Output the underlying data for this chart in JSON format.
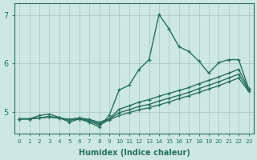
{
  "xlabel": "Humidex (Indice chaleur)",
  "ylabel": "",
  "background_color": "#cce8e0",
  "grid_color": "#b0d0c8",
  "line_color": "#2a7060",
  "xlim": [
    -0.5,
    23.5
  ],
  "ylim": [
    4.55,
    7.25
  ],
  "xticks": [
    0,
    1,
    2,
    3,
    4,
    5,
    6,
    7,
    8,
    9,
    10,
    11,
    12,
    13,
    14,
    15,
    16,
    17,
    18,
    19,
    20,
    21,
    22,
    23
  ],
  "yticks": [
    5,
    6,
    7
  ],
  "lines": [
    [
      4.85,
      4.85,
      4.92,
      4.95,
      4.88,
      4.78,
      4.85,
      4.78,
      4.68,
      4.92,
      5.45,
      5.55,
      5.88,
      6.08,
      7.02,
      6.72,
      6.35,
      6.25,
      6.05,
      5.8,
      6.02,
      6.08,
      6.08,
      5.48
    ],
    [
      4.85,
      4.85,
      4.87,
      4.9,
      4.87,
      4.84,
      4.87,
      4.84,
      4.78,
      4.85,
      5.05,
      5.12,
      5.2,
      5.25,
      5.32,
      5.38,
      5.44,
      5.5,
      5.58,
      5.65,
      5.72,
      5.8,
      5.88,
      5.48
    ],
    [
      4.85,
      4.85,
      4.87,
      4.89,
      4.87,
      4.83,
      4.86,
      4.82,
      4.75,
      4.84,
      4.98,
      5.04,
      5.11,
      5.15,
      5.22,
      5.28,
      5.34,
      5.4,
      5.48,
      5.55,
      5.62,
      5.7,
      5.78,
      5.45
    ],
    [
      4.85,
      4.85,
      4.87,
      4.89,
      4.86,
      4.82,
      4.85,
      4.81,
      4.72,
      4.83,
      4.92,
      4.98,
      5.04,
      5.08,
      5.14,
      5.2,
      5.27,
      5.33,
      5.4,
      5.47,
      5.54,
      5.62,
      5.7,
      5.42
    ]
  ]
}
